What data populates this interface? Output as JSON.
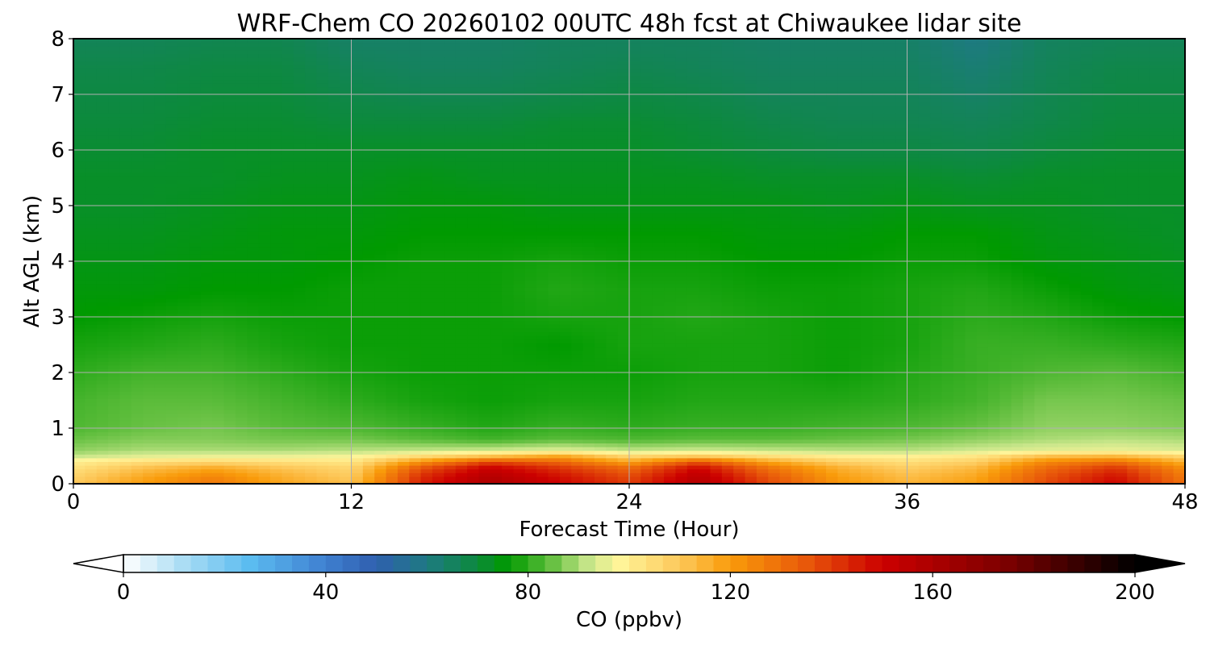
{
  "chart_data": {
    "type": "heatmap",
    "title": "WRF-Chem CO  20260102 00UTC 48h fcst at Chiwaukee lidar site",
    "xlabel": "Forecast Time (Hour)",
    "ylabel": "Alt AGL (km)",
    "xlim": [
      0,
      48
    ],
    "ylim": [
      0,
      8
    ],
    "xticks": [
      0,
      12,
      24,
      36,
      48
    ],
    "yticks": [
      0,
      1,
      2,
      3,
      4,
      5,
      6,
      7,
      8
    ],
    "grid": true,
    "times": [
      0,
      3,
      6,
      9,
      12,
      15,
      18,
      21,
      24,
      27,
      30,
      33,
      36,
      39,
      42,
      45,
      48
    ],
    "altitudes": [
      0,
      0.1,
      0.2,
      0.3,
      0.4,
      0.5,
      0.6,
      0.8,
      1.0,
      1.5,
      2.0,
      2.5,
      3.0,
      3.5,
      4.0,
      4.5,
      5.0,
      5.5,
      6.0,
      6.5,
      7.0,
      7.5,
      8.0
    ],
    "values": [
      [
        110,
        120,
        128,
        118,
        112,
        145,
        160,
        150,
        140,
        158,
        138,
        122,
        115,
        120,
        138,
        150,
        130
      ],
      [
        108,
        118,
        126,
        116,
        110,
        143,
        158,
        148,
        138,
        156,
        136,
        120,
        113,
        118,
        136,
        148,
        128
      ],
      [
        106,
        115,
        122,
        114,
        108,
        140,
        155,
        145,
        135,
        153,
        133,
        118,
        111,
        116,
        134,
        145,
        126
      ],
      [
        103,
        111,
        116,
        110,
        106,
        134,
        150,
        140,
        130,
        148,
        128,
        115,
        108,
        113,
        130,
        140,
        122
      ],
      [
        100,
        104,
        106,
        104,
        102,
        122,
        138,
        132,
        118,
        136,
        118,
        108,
        104,
        108,
        124,
        130,
        115
      ],
      [
        92,
        95,
        96,
        96,
        97,
        105,
        112,
        118,
        106,
        110,
        104,
        100,
        99,
        102,
        112,
        114,
        106
      ],
      [
        88,
        90,
        90,
        90,
        91,
        92,
        93,
        95,
        92,
        93,
        92,
        91,
        91,
        93,
        95,
        96,
        94
      ],
      [
        85,
        87,
        87,
        86,
        86,
        84,
        82,
        84,
        83,
        84,
        84,
        85,
        86,
        88,
        90,
        91,
        90
      ],
      [
        83,
        85,
        86,
        84,
        83,
        81,
        79,
        81,
        80,
        81,
        81,
        82,
        83,
        85,
        88,
        88,
        87
      ],
      [
        82,
        84,
        84,
        82,
        80,
        78,
        77,
        78,
        78,
        79,
        79,
        79,
        80,
        82,
        86,
        86,
        85
      ],
      [
        80,
        82,
        82,
        80,
        78,
        77,
        77,
        77,
        77,
        78,
        78,
        77,
        79,
        81,
        83,
        84,
        82
      ],
      [
        78,
        79,
        80,
        78,
        77,
        77,
        77,
        76,
        78,
        78,
        78,
        77,
        78,
        81,
        81,
        80,
        79
      ],
      [
        76,
        77,
        78,
        77,
        77,
        77,
        77,
        78,
        78,
        79,
        78,
        77,
        78,
        80,
        79,
        77,
        76
      ],
      [
        75,
        75,
        76,
        76,
        77,
        77,
        77,
        79,
        78,
        78,
        77,
        77,
        78,
        79,
        77,
        75,
        74
      ],
      [
        74,
        74,
        75,
        75,
        76,
        77,
        77,
        78,
        77,
        77,
        76,
        76,
        77,
        77,
        75,
        74,
        73
      ],
      [
        73,
        73,
        74,
        75,
        75,
        76,
        76,
        76,
        76,
        76,
        75,
        75,
        76,
        76,
        74,
        73,
        72
      ],
      [
        72,
        72,
        73,
        74,
        74,
        75,
        75,
        74,
        74,
        74,
        74,
        73,
        74,
        73,
        73,
        72,
        72
      ],
      [
        72,
        72,
        72,
        73,
        73,
        74,
        73,
        73,
        73,
        73,
        72,
        72,
        72,
        71,
        72,
        72,
        72
      ],
      [
        71,
        71,
        72,
        72,
        72,
        72,
        72,
        72,
        72,
        71,
        70,
        69,
        69,
        68,
        70,
        71,
        71
      ],
      [
        70,
        70,
        71,
        71,
        70,
        70,
        70,
        71,
        71,
        70,
        68,
        67,
        67,
        66,
        68,
        70,
        70
      ],
      [
        69,
        69,
        70,
        70,
        68,
        67,
        67,
        68,
        69,
        68,
        66,
        66,
        66,
        64,
        67,
        69,
        69
      ],
      [
        68,
        68,
        69,
        69,
        66,
        65,
        65,
        66,
        67,
        66,
        65,
        65,
        65,
        62,
        66,
        68,
        68
      ],
      [
        66,
        66,
        67,
        67,
        64,
        64,
        64,
        65,
        65,
        65,
        64,
        64,
        64,
        60,
        65,
        66,
        66
      ]
    ],
    "colorbar": {
      "label": "CO  (ppbv)",
      "min": 0,
      "max": 200,
      "ticks": [
        0,
        40,
        80,
        120,
        160,
        200
      ],
      "extend": "both",
      "stops": [
        {
          "value": 0,
          "color": "#ffffff"
        },
        {
          "value": 12,
          "color": "#a9dcf4"
        },
        {
          "value": 25,
          "color": "#5bbcf0"
        },
        {
          "value": 40,
          "color": "#3f7fd0"
        },
        {
          "value": 50,
          "color": "#2f5fae"
        },
        {
          "value": 60,
          "color": "#1e7a82"
        },
        {
          "value": 70,
          "color": "#0c8a3c"
        },
        {
          "value": 76,
          "color": "#009a00"
        },
        {
          "value": 84,
          "color": "#5bbc3a"
        },
        {
          "value": 92,
          "color": "#c8e68a"
        },
        {
          "value": 98,
          "color": "#fff59a"
        },
        {
          "value": 110,
          "color": "#fdc85a"
        },
        {
          "value": 120,
          "color": "#f99b0a"
        },
        {
          "value": 135,
          "color": "#e8580a"
        },
        {
          "value": 150,
          "color": "#cc0000"
        },
        {
          "value": 175,
          "color": "#7a0000"
        },
        {
          "value": 200,
          "color": "#000000"
        }
      ]
    }
  }
}
